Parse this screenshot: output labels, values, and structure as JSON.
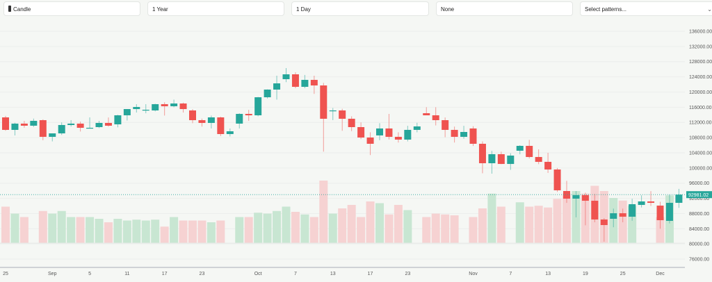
{
  "toolbar": {
    "chart_type": "Candle",
    "chart_type_icon": "candlestick-icon",
    "range": "1 Year",
    "interval": "1 Day",
    "indicator": "None",
    "patterns_placeholder": "Select patterns...",
    "patterns_chevron": "⌄"
  },
  "colors": {
    "up": "#26a69a",
    "down": "#ef5350",
    "up_volume": "#c8e6d2",
    "down_volume": "#f6d2d2",
    "background": "#f5f7f4",
    "grid": "#eceeec"
  },
  "chart_data": {
    "type": "candlestick",
    "ylim": [
      74000,
      138000
    ],
    "y_ticks": [
      136000,
      132000,
      128000,
      124000,
      120000,
      116000,
      112000,
      108000,
      104000,
      100000,
      96000,
      92000,
      88000,
      84000,
      80000,
      76000
    ],
    "y_tick_labels": [
      "136000.00",
      "132000.00",
      "128000.00",
      "124000.00",
      "120000.00",
      "116000.00",
      "112000.00",
      "108000.00",
      "104000.00",
      "100000.00",
      "96000.00",
      "92000.00",
      "88000.00",
      "84000.00",
      "80000.00",
      "76000.00"
    ],
    "x_ticks": [
      {
        "label": "25",
        "index": 0
      },
      {
        "label": "Sep",
        "index": 5
      },
      {
        "label": "5",
        "index": 9
      },
      {
        "label": "11",
        "index": 13
      },
      {
        "label": "17",
        "index": 17
      },
      {
        "label": "23",
        "index": 21
      },
      {
        "label": "Oct",
        "index": 27
      },
      {
        "label": "7",
        "index": 31
      },
      {
        "label": "13",
        "index": 35
      },
      {
        "label": "17",
        "index": 39
      },
      {
        "label": "23",
        "index": 43
      },
      {
        "label": "Nov",
        "index": 50
      },
      {
        "label": "7",
        "index": 54
      },
      {
        "label": "13",
        "index": 58
      },
      {
        "label": "19",
        "index": 62
      },
      {
        "label": "25",
        "index": 66
      },
      {
        "label": "Dec",
        "index": 70
      }
    ],
    "last_price": 92981.02,
    "last_price_label": "92981.02",
    "grid": true,
    "ohlc": [
      [
        113320,
        113700,
        109800,
        110030
      ],
      [
        110030,
        111900,
        108570,
        111680
      ],
      [
        111680,
        112400,
        110600,
        111130
      ],
      [
        111130,
        113000,
        110800,
        112410
      ],
      [
        112590,
        112800,
        107300,
        108200
      ],
      [
        108200,
        109000,
        107000,
        109110
      ],
      [
        109110,
        112000,
        108700,
        111310
      ],
      [
        111310,
        112600,
        110900,
        111680
      ],
      [
        111680,
        112200,
        109600,
        110580
      ],
      [
        110580,
        113320,
        110400,
        110580
      ],
      [
        110760,
        112400,
        110500,
        111860
      ],
      [
        111860,
        113300,
        110900,
        111130
      ],
      [
        111490,
        114000,
        110700,
        113870
      ],
      [
        113870,
        115500,
        112500,
        115510
      ],
      [
        115510,
        116800,
        114600,
        116060
      ],
      [
        115330,
        116800,
        114400,
        115330
      ],
      [
        115150,
        116900,
        114900,
        116800
      ],
      [
        116800,
        117300,
        113800,
        116250
      ],
      [
        116250,
        118000,
        116000,
        116980
      ],
      [
        116980,
        117200,
        114600,
        115510
      ],
      [
        115150,
        115500,
        111800,
        112590
      ],
      [
        112590,
        113000,
        110900,
        111860
      ],
      [
        111860,
        113800,
        110400,
        113320
      ],
      [
        113320,
        113500,
        108400,
        108930
      ],
      [
        108930,
        110400,
        108300,
        109660
      ],
      [
        111680,
        114400,
        110400,
        114240
      ],
      [
        114240,
        115300,
        112400,
        113870
      ],
      [
        113870,
        118700,
        113600,
        118620
      ],
      [
        118620,
        120700,
        118300,
        120640
      ],
      [
        120640,
        124300,
        118000,
        122280
      ],
      [
        123380,
        126300,
        122600,
        124660
      ],
      [
        124660,
        125200,
        121000,
        121370
      ],
      [
        121370,
        124500,
        121000,
        123200
      ],
      [
        123200,
        124300,
        119500,
        121730
      ],
      [
        121730,
        122400,
        104300,
        112960
      ],
      [
        115150,
        115800,
        112600,
        115150
      ],
      [
        115150,
        115600,
        109800,
        112960
      ],
      [
        112960,
        113600,
        109700,
        110760
      ],
      [
        110760,
        112000,
        107600,
        108020
      ],
      [
        108020,
        109400,
        103400,
        106370
      ],
      [
        108570,
        111800,
        107300,
        110400
      ],
      [
        110400,
        114240,
        107500,
        108200
      ],
      [
        108200,
        109400,
        106700,
        107470
      ],
      [
        107470,
        111100,
        107000,
        110030
      ],
      [
        110030,
        111900,
        109400,
        110940
      ],
      [
        114420,
        116000,
        114000,
        113870
      ],
      [
        113870,
        116000,
        111200,
        112590
      ],
      [
        112590,
        113300,
        108100,
        110030
      ],
      [
        110030,
        110900,
        106700,
        108200
      ],
      [
        108200,
        111100,
        107700,
        109480
      ],
      [
        110400,
        111000,
        105800,
        106370
      ],
      [
        106370,
        107000,
        98600,
        101250
      ],
      [
        101250,
        104500,
        98500,
        103630
      ],
      [
        103630,
        104300,
        101000,
        101060
      ],
      [
        101060,
        103900,
        99500,
        103260
      ],
      [
        104540,
        106000,
        103600,
        105820
      ],
      [
        105820,
        107400,
        102500,
        102890
      ],
      [
        102890,
        104900,
        101000,
        101610
      ],
      [
        101610,
        104000,
        98700,
        99600
      ],
      [
        99600,
        100000,
        93700,
        94120
      ],
      [
        93930,
        96600,
        90800,
        91920
      ],
      [
        91920,
        93900,
        87000,
        92840
      ],
      [
        92840,
        93500,
        84900,
        91370
      ],
      [
        91370,
        93200,
        85700,
        86430
      ],
      [
        86430,
        86800,
        80600,
        84970
      ],
      [
        86620,
        89300,
        84400,
        88080
      ],
      [
        88080,
        89300,
        85700,
        87170
      ],
      [
        87170,
        91900,
        86100,
        90460
      ],
      [
        90270,
        92800,
        89600,
        91190
      ],
      [
        91190,
        93900,
        90000,
        90820
      ],
      [
        90090,
        91100,
        84000,
        86250
      ],
      [
        86070,
        93000,
        85400,
        90820
      ],
      [
        90820,
        94500,
        89500,
        92981
      ]
    ],
    "volume": [
      42,
      34,
      30,
      0,
      37,
      34,
      37,
      30,
      30,
      30,
      28,
      24,
      28,
      26,
      27,
      26,
      27,
      19,
      30,
      26,
      26,
      26,
      24,
      26,
      0,
      30,
      30,
      35,
      34,
      37,
      42,
      36,
      33,
      30,
      72,
      34,
      40,
      44,
      30,
      48,
      46,
      33,
      44,
      38,
      0,
      30,
      34,
      33,
      32,
      0,
      30,
      40,
      57,
      42,
      0,
      47,
      42,
      43,
      41,
      51,
      57,
      60,
      57,
      66,
      60,
      52,
      49,
      43,
      0,
      0,
      30,
      55,
      0
    ]
  }
}
